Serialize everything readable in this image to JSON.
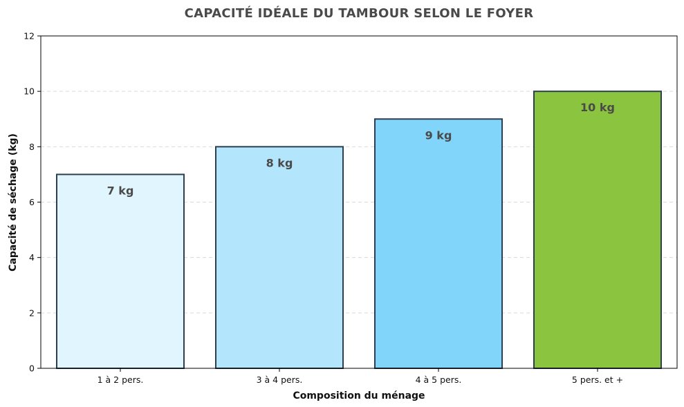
{
  "chart_data": {
    "type": "bar",
    "title": "CAPACITÉ IDÉALE DU TAMBOUR SELON LE FOYER",
    "xlabel": "Composition du ménage",
    "ylabel": "Capacité de séchage (kg)",
    "categories": [
      "1 à 2 pers.",
      "3 à 4 pers.",
      "4 à 5 pers.",
      "5 pers. et +"
    ],
    "values": [
      7,
      8,
      9,
      10
    ],
    "data_labels": [
      "7 kg",
      "8 kg",
      "9 kg",
      "10 kg"
    ],
    "bar_colors": [
      "#e1f5fe",
      "#b3e5fc",
      "#81d4fa",
      "#8bc43f"
    ],
    "bar_edge_color": "#2c3e50",
    "ylim": [
      0,
      12
    ],
    "yticks": [
      0,
      2,
      4,
      6,
      8,
      10,
      12
    ],
    "grid": "y-dashed",
    "legend": "none"
  }
}
